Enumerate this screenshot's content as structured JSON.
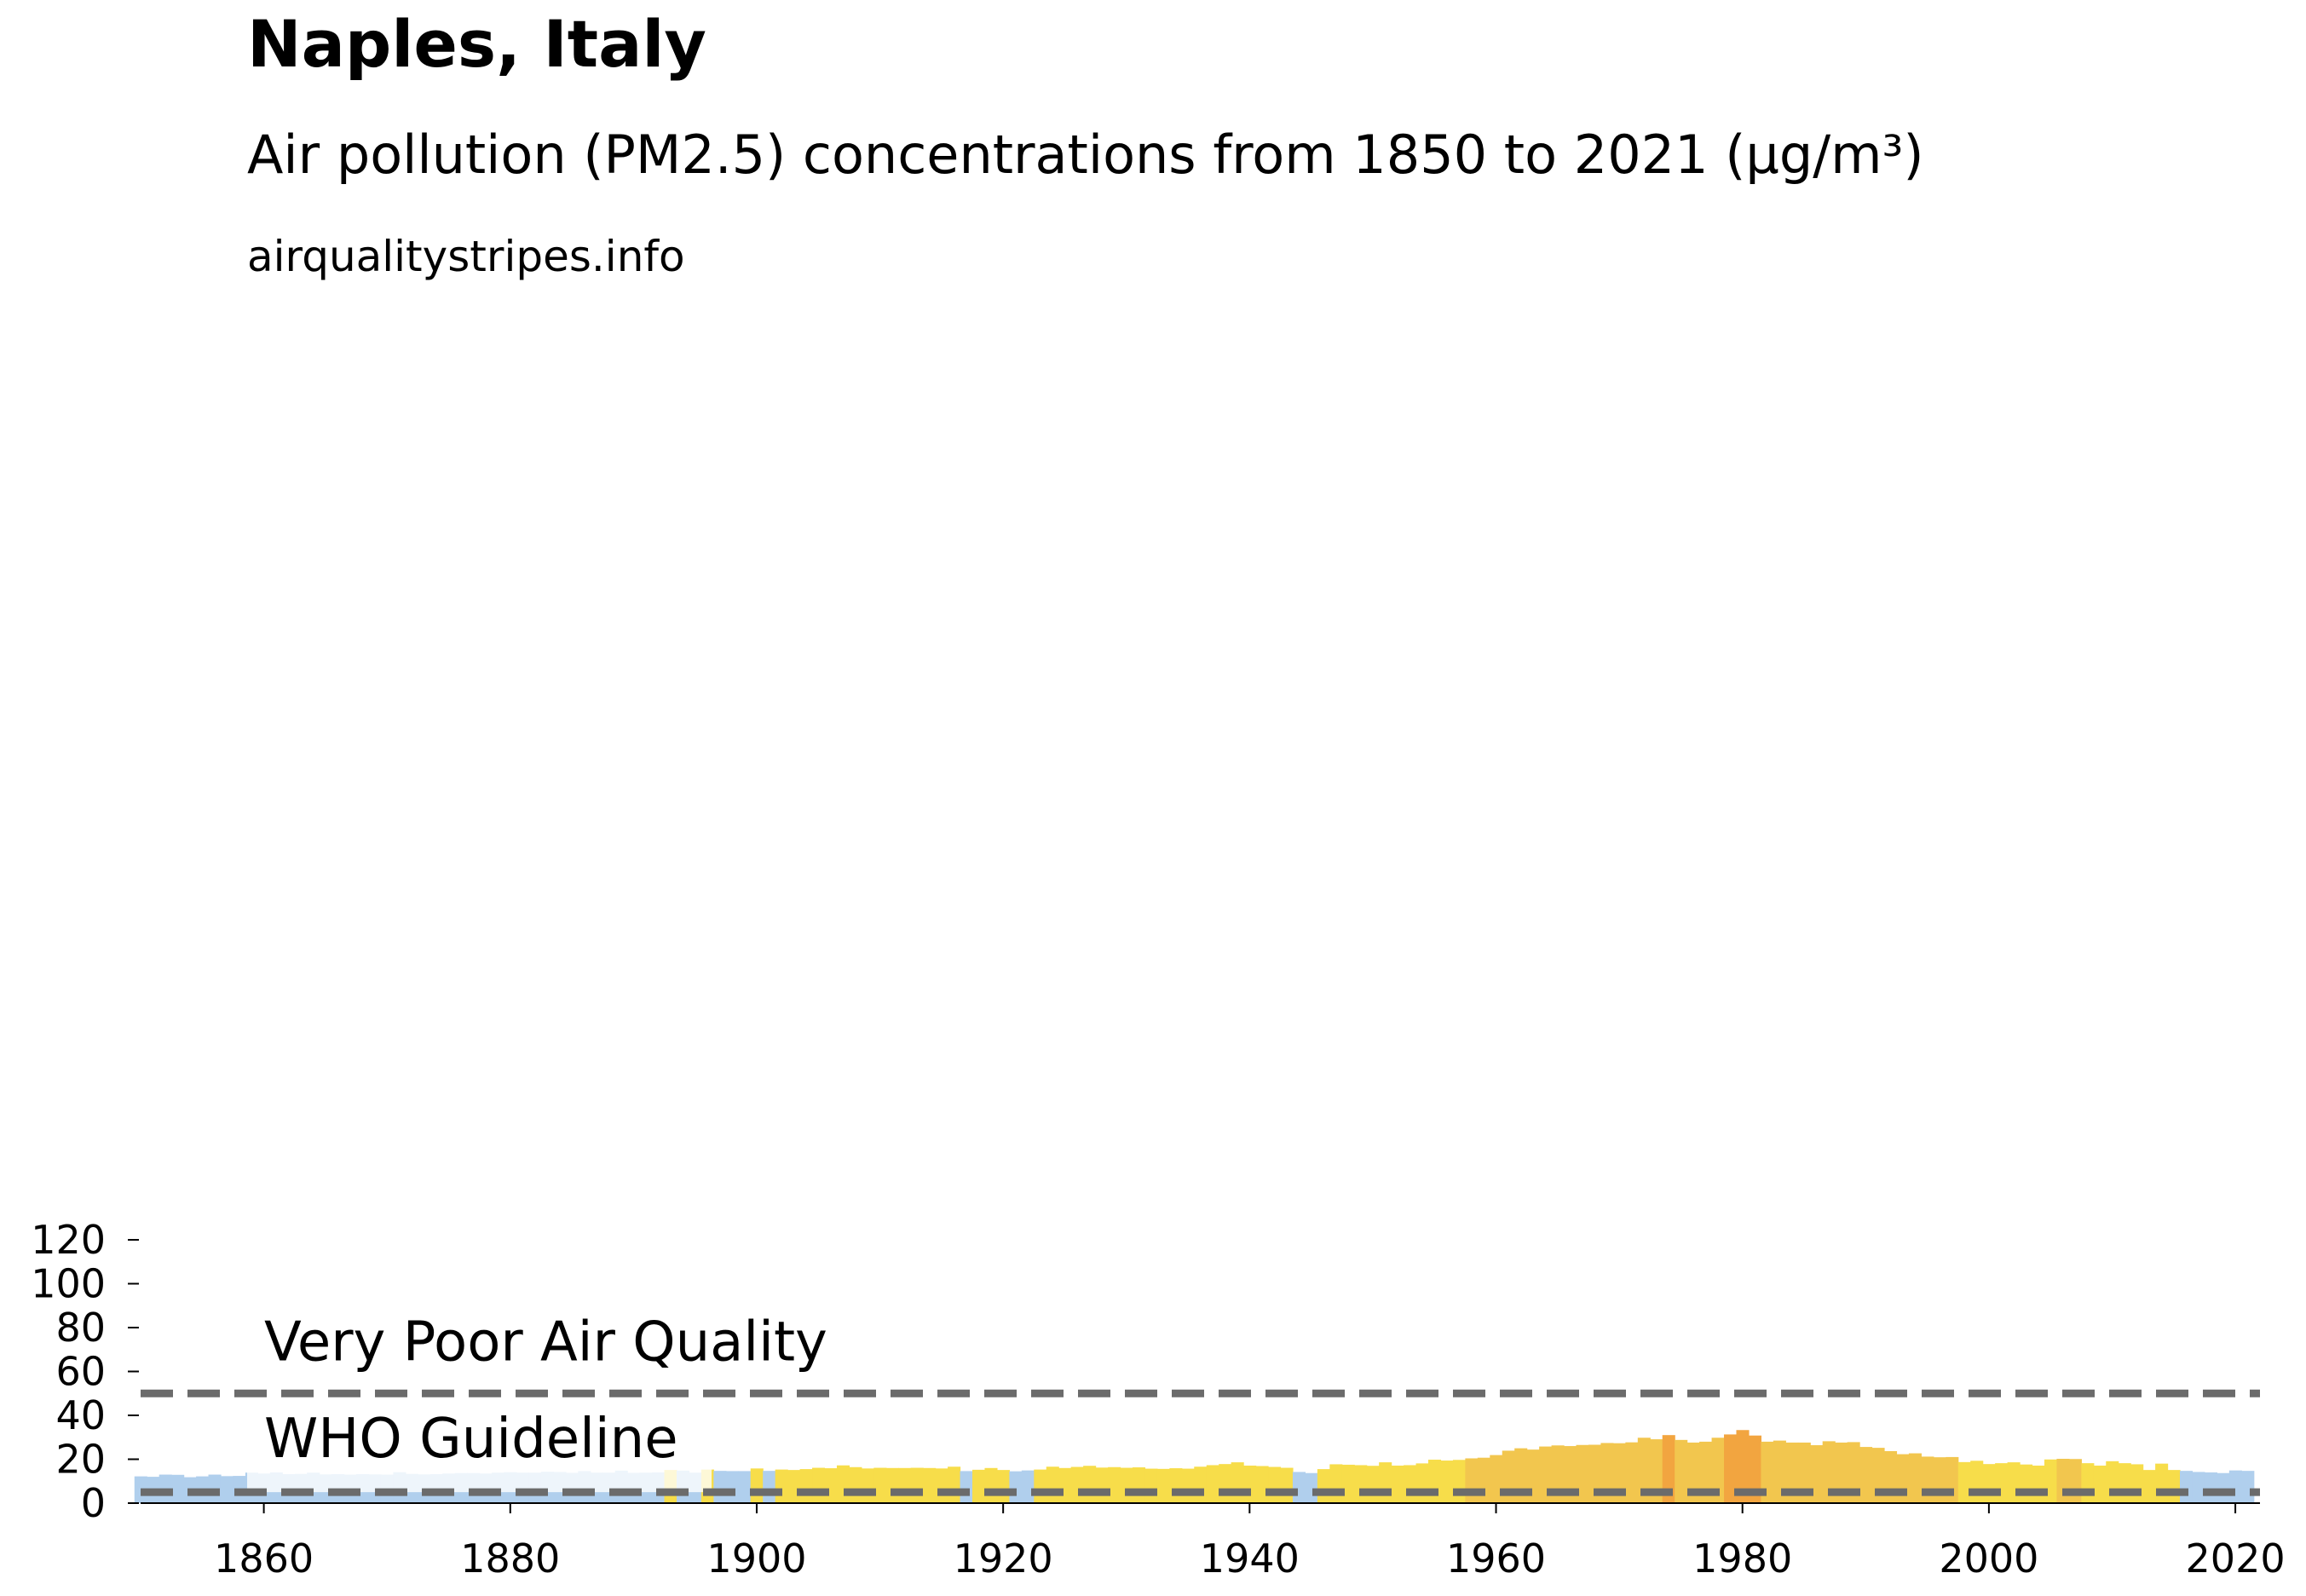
{
  "chart_data": {
    "type": "bar",
    "title": "Naples, Italy",
    "subtitle": "Air pollution (PM2.5) concentrations from 1850 to 2021 (µg/m³)",
    "source": "airqualitystripes.info",
    "xlabel": "",
    "ylabel": "",
    "xlim": [
      1850,
      2022
    ],
    "ylim": [
      0,
      127
    ],
    "x_ticks": [
      1860,
      1880,
      1900,
      1920,
      1940,
      1960,
      1980,
      2000,
      2020
    ],
    "y_ticks": [
      0,
      20,
      40,
      60,
      80,
      100,
      120
    ],
    "grid": false,
    "reference_lines": [
      {
        "label": "WHO Guideline",
        "value": 5,
        "color": "#6b6b6b"
      },
      {
        "label": "Very Poor Air Quality",
        "value": 50,
        "color": "#6b6b6b"
      }
    ],
    "color_bands": [
      {
        "min": 0,
        "max": 15,
        "color": "#b0cfed"
      },
      {
        "min": 15,
        "max": 20,
        "color": "#f7dd4a"
      },
      {
        "min": 20,
        "max": 30,
        "color": "#f2c64e"
      },
      {
        "min": 30,
        "max": 40,
        "color": "#f2a540"
      }
    ],
    "x": [
      1850,
      1851,
      1852,
      1853,
      1854,
      1855,
      1856,
      1857,
      1858,
      1859,
      1860,
      1861,
      1862,
      1863,
      1864,
      1865,
      1866,
      1867,
      1868,
      1869,
      1870,
      1871,
      1872,
      1873,
      1874,
      1875,
      1876,
      1877,
      1878,
      1879,
      1880,
      1881,
      1882,
      1883,
      1884,
      1885,
      1886,
      1887,
      1888,
      1889,
      1890,
      1891,
      1892,
      1893,
      1894,
      1895,
      1896,
      1897,
      1898,
      1899,
      1900,
      1901,
      1902,
      1903,
      1904,
      1905,
      1906,
      1907,
      1908,
      1909,
      1910,
      1911,
      1912,
      1913,
      1914,
      1915,
      1916,
      1917,
      1918,
      1919,
      1920,
      1921,
      1922,
      1923,
      1924,
      1925,
      1926,
      1927,
      1928,
      1929,
      1930,
      1931,
      1932,
      1933,
      1934,
      1935,
      1936,
      1937,
      1938,
      1939,
      1940,
      1941,
      1942,
      1943,
      1944,
      1945,
      1946,
      1947,
      1948,
      1949,
      1950,
      1951,
      1952,
      1953,
      1954,
      1955,
      1956,
      1957,
      1958,
      1959,
      1960,
      1961,
      1962,
      1963,
      1964,
      1965,
      1966,
      1967,
      1968,
      1969,
      1970,
      1971,
      1972,
      1973,
      1974,
      1975,
      1976,
      1977,
      1978,
      1979,
      1980,
      1981,
      1982,
      1983,
      1984,
      1985,
      1986,
      1987,
      1988,
      1989,
      1990,
      1991,
      1992,
      1993,
      1994,
      1995,
      1996,
      1997,
      1998,
      1999,
      2000,
      2001,
      2002,
      2003,
      2004,
      2005,
      2006,
      2007,
      2008,
      2009,
      2010,
      2011,
      2012,
      2013,
      2014,
      2015,
      2016,
      2017,
      2018,
      2019,
      2020,
      2021
    ],
    "values": [
      12.2,
      12.0,
      13.0,
      12.9,
      11.8,
      12.2,
      13.0,
      12.3,
      12.4,
      13.9,
      13.5,
      14.0,
      13.2,
      13.3,
      13.9,
      13.1,
      13.2,
      13.0,
      13.2,
      13.1,
      13.0,
      14.1,
      13.3,
      13.1,
      13.2,
      13.5,
      13.7,
      13.7,
      13.5,
      13.9,
      14.1,
      13.9,
      13.9,
      14.3,
      14.2,
      13.8,
      14.6,
      13.9,
      13.9,
      14.8,
      13.8,
      13.9,
      14.0,
      15.1,
      14.8,
      13.9,
      15.3,
      14.7,
      14.6,
      14.6,
      15.8,
      14.7,
      15.3,
      15.1,
      15.5,
      16.1,
      15.9,
      17.2,
      16.4,
      15.8,
      16.1,
      16.0,
      16.0,
      16.1,
      16.0,
      15.8,
      16.6,
      14.6,
      15.2,
      16.0,
      15.1,
      14.5,
      14.9,
      15.3,
      16.6,
      16.0,
      16.5,
      17.0,
      16.2,
      16.4,
      16.1,
      16.3,
      15.7,
      15.6,
      15.9,
      15.7,
      16.6,
      17.3,
      17.8,
      18.6,
      17.1,
      16.9,
      16.5,
      16.1,
      14.2,
      13.7,
      15.5,
      17.7,
      17.5,
      17.3,
      17.0,
      18.6,
      17.1,
      17.3,
      18.1,
      19.8,
      19.4,
      19.7,
      20.4,
      20.7,
      21.9,
      23.9,
      25.0,
      24.4,
      25.8,
      26.3,
      26.0,
      26.5,
      26.6,
      27.4,
      27.3,
      27.7,
      29.8,
      29.1,
      31.0,
      28.8,
      27.6,
      28.0,
      29.8,
      31.3,
      33.3,
      30.8,
      28.0,
      28.5,
      27.6,
      27.6,
      26.4,
      28.2,
      27.6,
      27.8,
      25.6,
      25.2,
      23.7,
      22.3,
      22.7,
      21.2,
      20.9,
      21.0,
      18.7,
      19.3,
      17.8,
      18.2,
      18.6,
      17.6,
      17.1,
      19.9,
      20.2,
      20.1,
      18.2,
      17.1,
      19.1,
      18.2,
      17.7,
      15.1,
      18.0,
      15.1,
      14.7,
      14.2,
      14.0,
      13.7,
      14.9,
      14.7
    ]
  }
}
